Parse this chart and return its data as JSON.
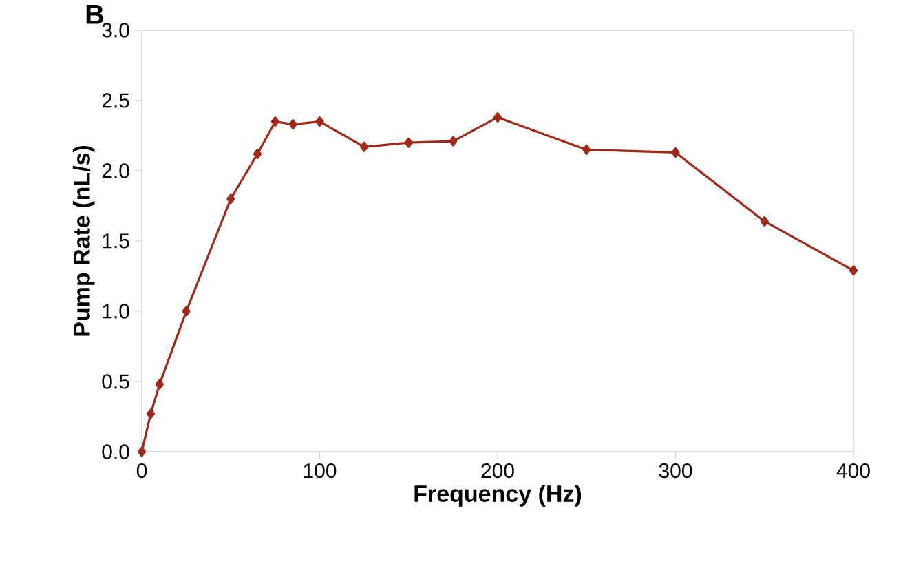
{
  "chart_data": {
    "type": "line",
    "xlabel": "Frequency (Hz)",
    "ylabel": "Pump Rate (nL/s)",
    "annotations": [
      "B"
    ],
    "x": [
      0,
      5,
      10,
      25,
      50,
      65,
      75,
      85,
      100,
      125,
      150,
      175,
      200,
      250,
      300,
      350,
      400
    ],
    "series": [
      {
        "color": "#9e2a1c",
        "values": [
          0,
          0.27,
          0.48,
          1.0,
          1.8,
          2.12,
          2.35,
          2.33,
          2.35,
          2.17,
          2.2,
          2.21,
          2.38,
          2.15,
          2.13,
          1.64,
          1.29
        ]
      }
    ],
    "xlim": [
      0,
      400
    ],
    "ylim": [
      0,
      3
    ],
    "xticks": [
      0,
      100,
      200,
      300,
      400
    ],
    "yticks": [
      {
        "value": 0,
        "label": "0.0"
      },
      {
        "value": 0.5,
        "label": "0.5"
      },
      {
        "value": 1,
        "label": "1.0"
      },
      {
        "value": 1.5,
        "label": "1.5"
      },
      {
        "value": 2,
        "label": "2.0"
      },
      {
        "value": 2.5,
        "label": "2.5"
      },
      {
        "value": 3,
        "label": "3.0"
      }
    ],
    "marker": "diamond",
    "line_style": "solid",
    "grid": false
  }
}
